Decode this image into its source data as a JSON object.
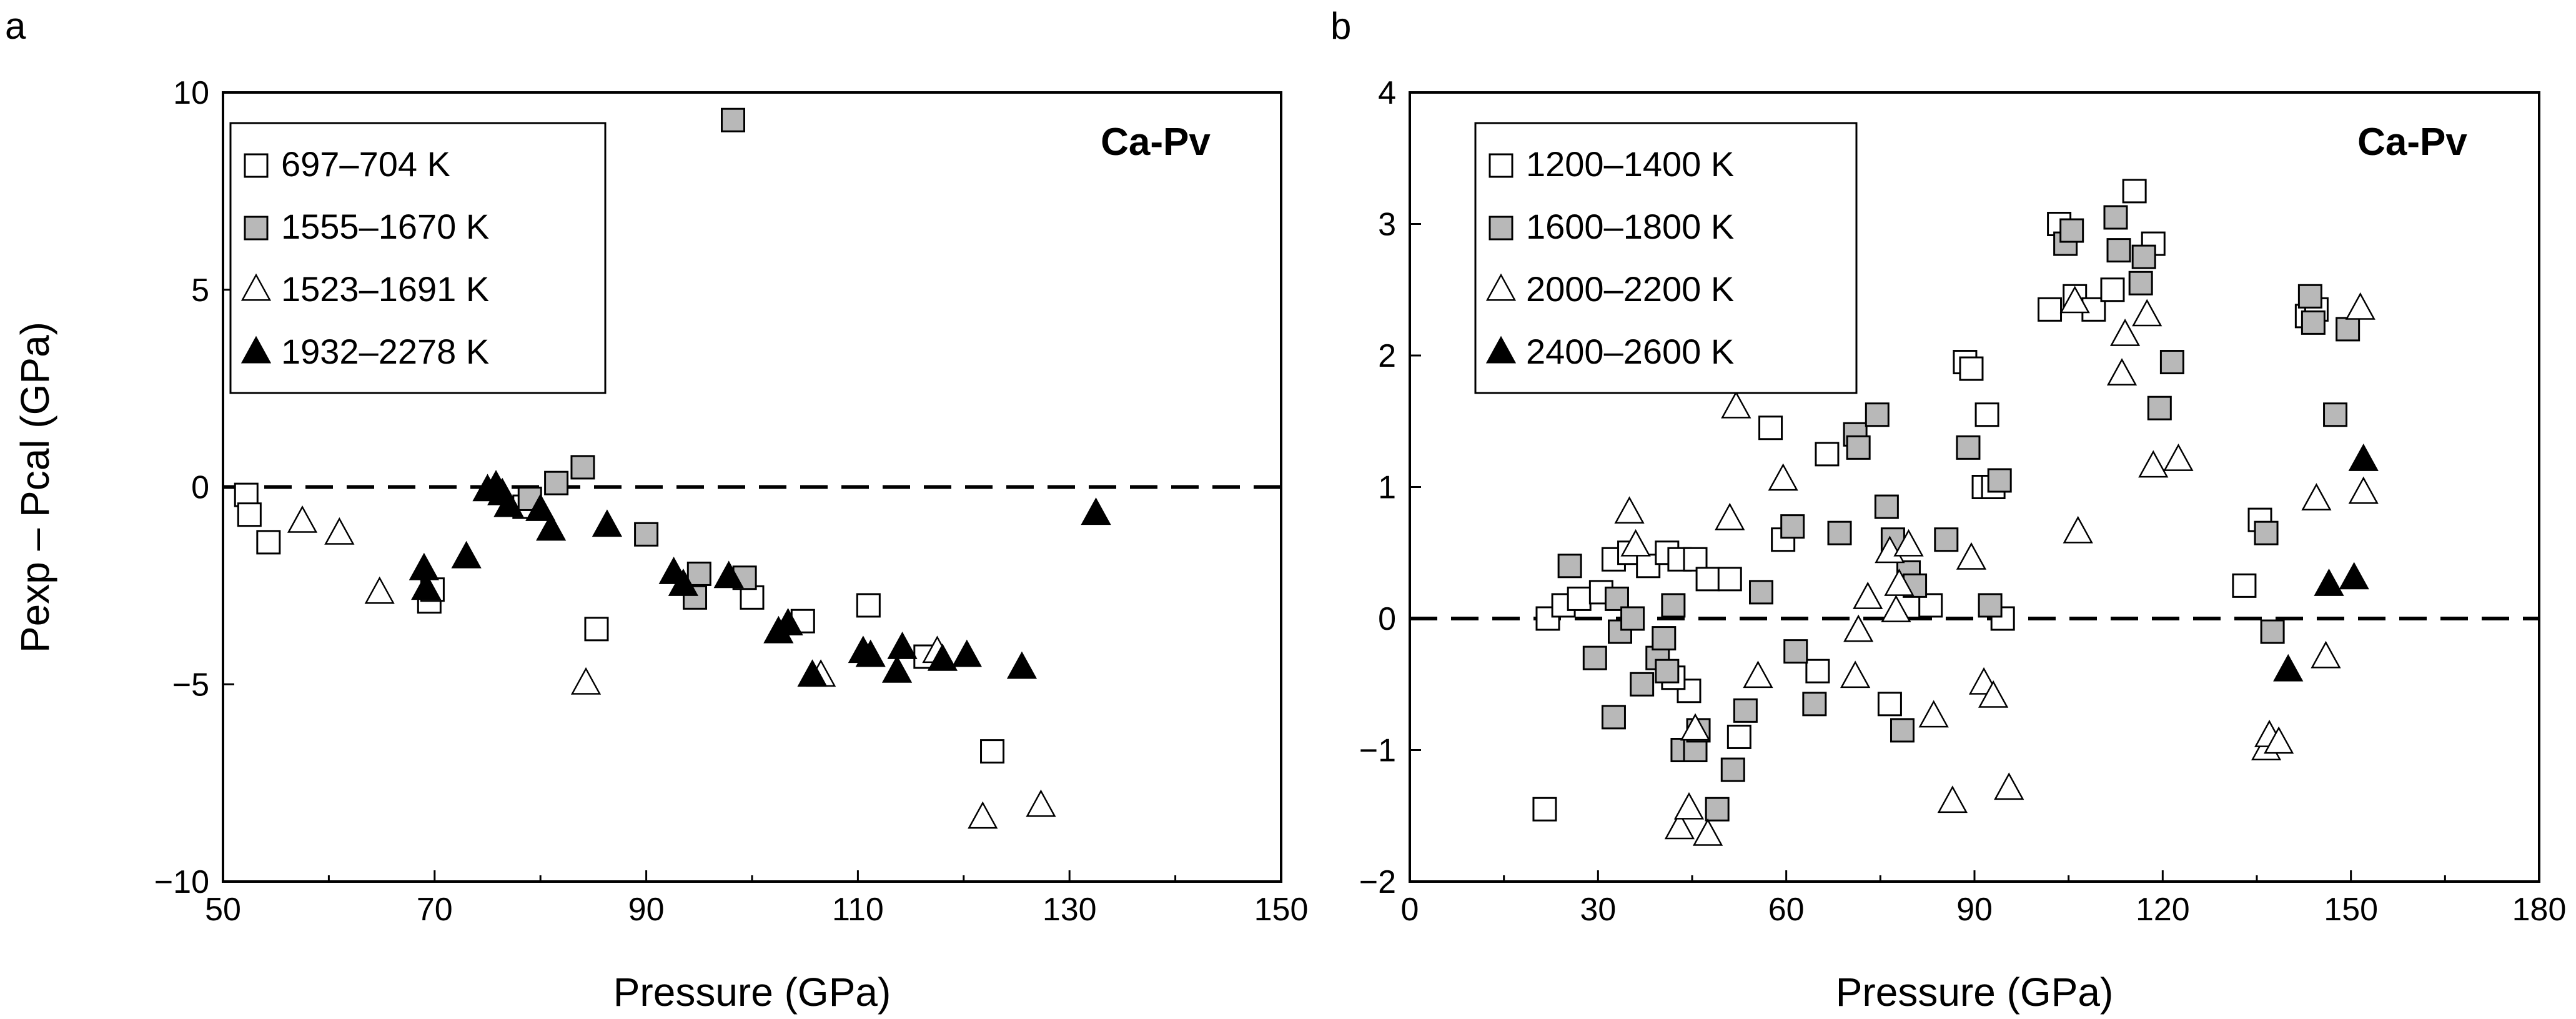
{
  "chart_data": [
    {
      "type": "scatter",
      "panel_label": "a",
      "annotation": "Ca-Pv",
      "xlabel": "Pressure (GPa)",
      "ylabel": "Pexp – Pcal (GPa)",
      "xlim": [
        50,
        150
      ],
      "ylim": [
        -10,
        10
      ],
      "xticks": [
        50,
        70,
        90,
        110,
        130,
        150
      ],
      "xticklabels": [
        "50",
        "70",
        "90",
        "110",
        "130",
        "150"
      ],
      "yticks": [
        -10,
        -5,
        0,
        5,
        10
      ],
      "yticklabels": [
        "−10",
        "−5",
        "0",
        "5",
        "10"
      ],
      "reference_line": {
        "y": 0,
        "style": "dashed"
      },
      "grid": false,
      "legend_position": "top-left",
      "series": [
        {
          "name": "697–704 K",
          "marker": "square",
          "fill": "#ffffff",
          "points": [
            [
              52.2,
              -0.2
            ],
            [
              52.5,
              -0.7
            ],
            [
              54.3,
              -1.4
            ],
            [
              69.5,
              -2.9
            ],
            [
              69.8,
              -2.6
            ],
            [
              78.5,
              -0.5
            ],
            [
              85.3,
              -3.6
            ],
            [
              100.0,
              -2.8
            ],
            [
              104.8,
              -3.4
            ],
            [
              111.0,
              -3.0
            ],
            [
              116.4,
              -4.3
            ],
            [
              122.7,
              -6.7
            ]
          ]
        },
        {
          "name": "1555–1670 K",
          "marker": "square",
          "fill": "#b8b8b8",
          "points": [
            [
              98.2,
              9.3
            ],
            [
              84.0,
              0.5
            ],
            [
              81.5,
              0.1
            ],
            [
              79.0,
              -0.3
            ],
            [
              90.0,
              -1.2
            ],
            [
              95.0,
              -2.2
            ],
            [
              94.6,
              -2.8
            ],
            [
              99.3,
              -2.3
            ]
          ]
        },
        {
          "name": "1523–1691 K",
          "marker": "triangle",
          "fill": "#ffffff",
          "points": [
            [
              57.5,
              -0.9
            ],
            [
              61.0,
              -1.2
            ],
            [
              64.8,
              -2.7
            ],
            [
              84.3,
              -5.0
            ],
            [
              106.5,
              -4.8
            ],
            [
              117.5,
              -4.2
            ],
            [
              121.8,
              -8.4
            ],
            [
              127.3,
              -8.1
            ]
          ]
        },
        {
          "name": "1932–2278 K",
          "marker": "triangle",
          "fill": "#000000",
          "points": [
            [
              69.0,
              -2.1
            ],
            [
              69.2,
              -2.6
            ],
            [
              73.0,
              -1.8
            ],
            [
              75.0,
              -0.1
            ],
            [
              75.8,
              0.0
            ],
            [
              76.4,
              -0.2
            ],
            [
              77.0,
              -0.5
            ],
            [
              80.0,
              -0.6
            ],
            [
              81.0,
              -1.1
            ],
            [
              86.3,
              -1.0
            ],
            [
              92.6,
              -2.2
            ],
            [
              93.5,
              -2.5
            ],
            [
              97.8,
              -2.3
            ],
            [
              102.5,
              -3.7
            ],
            [
              103.4,
              -3.5
            ],
            [
              105.7,
              -4.8
            ],
            [
              110.5,
              -4.2
            ],
            [
              111.2,
              -4.3
            ],
            [
              113.7,
              -4.7
            ],
            [
              114.2,
              -4.1
            ],
            [
              118.0,
              -4.4
            ],
            [
              120.3,
              -4.3
            ],
            [
              125.5,
              -4.6
            ],
            [
              132.5,
              -0.7
            ]
          ]
        }
      ]
    },
    {
      "type": "scatter",
      "panel_label": "b",
      "annotation": "Ca-Pv",
      "xlabel": "Pressure (GPa)",
      "ylabel": "",
      "xlim": [
        0,
        180
      ],
      "ylim": [
        -2,
        4
      ],
      "xticks": [
        0,
        30,
        60,
        90,
        120,
        150,
        180
      ],
      "xticklabels": [
        "0",
        "30",
        "60",
        "90",
        "120",
        "150",
        "180"
      ],
      "yticks": [
        -2,
        -1,
        0,
        1,
        2,
        3,
        4
      ],
      "yticklabels": [
        "−2",
        "−1",
        "0",
        "1",
        "2",
        "3",
        "4"
      ],
      "reference_line": {
        "y": 0,
        "style": "dashed"
      },
      "grid": false,
      "legend_position": "top-left",
      "series": [
        {
          "name": "1200–1400 K",
          "marker": "square",
          "fill": "#ffffff",
          "points": [
            [
              21.5,
              -1.45
            ],
            [
              22.0,
              0.0
            ],
            [
              24.5,
              0.1
            ],
            [
              27.0,
              0.15
            ],
            [
              30.5,
              0.2
            ],
            [
              32.5,
              0.45
            ],
            [
              35.0,
              0.5
            ],
            [
              38.0,
              0.4
            ],
            [
              41.0,
              0.5
            ],
            [
              43.0,
              0.45
            ],
            [
              45.5,
              0.45
            ],
            [
              47.5,
              0.3
            ],
            [
              51.0,
              0.3
            ],
            [
              52.5,
              -0.9
            ],
            [
              44.5,
              -0.55
            ],
            [
              42.0,
              -0.45
            ],
            [
              57.5,
              1.45
            ],
            [
              59.5,
              0.6
            ],
            [
              65.0,
              -0.4
            ],
            [
              66.5,
              1.25
            ],
            [
              76.5,
              -0.65
            ],
            [
              83.0,
              0.1
            ],
            [
              88.5,
              1.95
            ],
            [
              89.5,
              1.9
            ],
            [
              91.5,
              1.0
            ],
            [
              92.0,
              1.55
            ],
            [
              93.0,
              1.0
            ],
            [
              94.5,
              0.0
            ],
            [
              102.0,
              2.35
            ],
            [
              103.5,
              3.0
            ],
            [
              106.0,
              2.45
            ],
            [
              109.0,
              2.35
            ],
            [
              112.0,
              2.5
            ],
            [
              115.5,
              3.25
            ],
            [
              118.5,
              2.85
            ],
            [
              133.0,
              0.25
            ],
            [
              135.5,
              0.75
            ],
            [
              143.0,
              2.3
            ],
            [
              144.5,
              2.35
            ]
          ]
        },
        {
          "name": "1600–1800 K",
          "marker": "square",
          "fill": "#b8b8b8",
          "points": [
            [
              25.5,
              0.4
            ],
            [
              29.5,
              -0.3
            ],
            [
              32.5,
              -0.75
            ],
            [
              33.0,
              0.15
            ],
            [
              33.5,
              -0.1
            ],
            [
              35.5,
              0.0
            ],
            [
              37.0,
              -0.5
            ],
            [
              39.5,
              -0.3
            ],
            [
              40.5,
              -0.15
            ],
            [
              41.0,
              -0.4
            ],
            [
              42.0,
              0.1
            ],
            [
              43.5,
              -1.0
            ],
            [
              45.5,
              -1.0
            ],
            [
              46.0,
              -0.85
            ],
            [
              49.0,
              -1.45
            ],
            [
              51.5,
              -1.15
            ],
            [
              53.5,
              -0.7
            ],
            [
              56.0,
              0.2
            ],
            [
              61.0,
              0.7
            ],
            [
              61.5,
              -0.25
            ],
            [
              64.5,
              -0.65
            ],
            [
              68.5,
              0.65
            ],
            [
              71.0,
              1.4
            ],
            [
              71.5,
              1.3
            ],
            [
              74.5,
              1.55
            ],
            [
              76.0,
              0.85
            ],
            [
              77.0,
              0.6
            ],
            [
              78.5,
              -0.85
            ],
            [
              79.5,
              0.35
            ],
            [
              80.5,
              0.25
            ],
            [
              85.5,
              0.6
            ],
            [
              89.0,
              1.3
            ],
            [
              92.5,
              0.1
            ],
            [
              94.0,
              1.05
            ],
            [
              104.5,
              2.85
            ],
            [
              105.5,
              2.95
            ],
            [
              112.5,
              3.05
            ],
            [
              113.0,
              2.8
            ],
            [
              116.5,
              2.55
            ],
            [
              117.0,
              2.75
            ],
            [
              119.5,
              1.6
            ],
            [
              121.5,
              1.95
            ],
            [
              136.5,
              0.65
            ],
            [
              137.5,
              -0.1
            ],
            [
              143.5,
              2.45
            ],
            [
              144.0,
              2.25
            ],
            [
              147.5,
              1.55
            ],
            [
              149.5,
              2.2
            ]
          ]
        },
        {
          "name": "2000–2200 K",
          "marker": "triangle",
          "fill": "#ffffff",
          "points": [
            [
              35.0,
              0.8
            ],
            [
              36.0,
              0.55
            ],
            [
              43.0,
              -1.6
            ],
            [
              44.5,
              -1.45
            ],
            [
              45.5,
              -0.85
            ],
            [
              47.5,
              -1.65
            ],
            [
              51.0,
              0.75
            ],
            [
              52.0,
              1.6
            ],
            [
              55.5,
              -0.45
            ],
            [
              59.5,
              1.05
            ],
            [
              71.0,
              -0.45
            ],
            [
              71.5,
              -0.1
            ],
            [
              73.0,
              0.15
            ],
            [
              76.5,
              0.5
            ],
            [
              77.5,
              0.05
            ],
            [
              78.0,
              0.25
            ],
            [
              79.5,
              0.55
            ],
            [
              83.5,
              -0.75
            ],
            [
              86.5,
              -1.4
            ],
            [
              89.5,
              0.45
            ],
            [
              91.5,
              -0.5
            ],
            [
              93.0,
              -0.6
            ],
            [
              95.5,
              -1.3
            ],
            [
              106.0,
              2.4
            ],
            [
              106.5,
              0.65
            ],
            [
              113.5,
              1.85
            ],
            [
              114.0,
              2.15
            ],
            [
              117.5,
              2.3
            ],
            [
              118.5,
              1.15
            ],
            [
              122.5,
              1.2
            ],
            [
              136.5,
              -1.0
            ],
            [
              137.0,
              -0.9
            ],
            [
              138.5,
              -0.95
            ],
            [
              144.5,
              0.9
            ],
            [
              146.0,
              -0.3
            ],
            [
              151.5,
              2.35
            ],
            [
              152.0,
              0.95
            ]
          ]
        },
        {
          "name": "2400–2600 K",
          "marker": "triangle",
          "fill": "#000000",
          "points": [
            [
              140.0,
              -0.4
            ],
            [
              146.5,
              0.25
            ],
            [
              150.5,
              0.3
            ],
            [
              152.0,
              1.2
            ]
          ]
        }
      ]
    }
  ]
}
